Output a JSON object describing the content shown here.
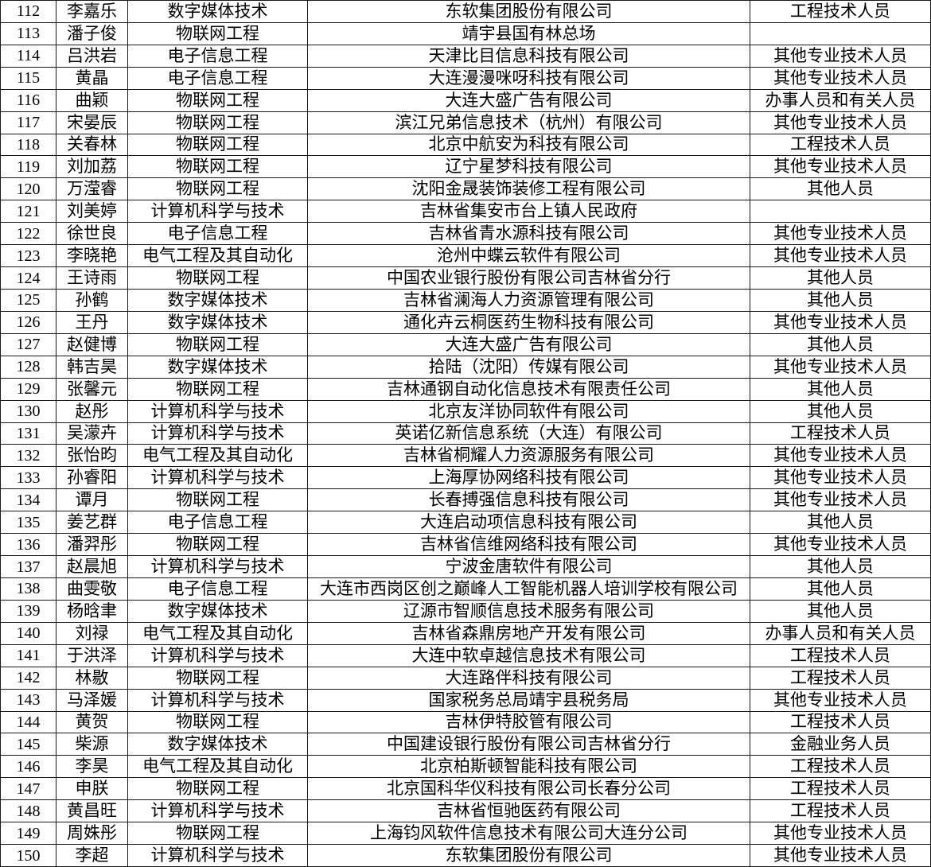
{
  "colors": {
    "background": "#ffffff",
    "border": "#1a1a1a",
    "text": "#000000"
  },
  "table": {
    "columns": [
      "index",
      "name",
      "major",
      "employer",
      "job_category"
    ],
    "rows": [
      [
        "112",
        "李嘉乐",
        "数字媒体技术",
        "东软集团股份有限公司",
        "工程技术人员"
      ],
      [
        "113",
        "潘子俊",
        "物联网工程",
        "靖宇县国有林总场",
        ""
      ],
      [
        "114",
        "吕洪岩",
        "电子信息工程",
        "天津比目信息科技有限公司",
        "其他专业技术人员"
      ],
      [
        "115",
        "黄晶",
        "电子信息工程",
        "大连漫漫咪呀科技有限公司",
        "其他专业技术人员"
      ],
      [
        "116",
        "曲颖",
        "物联网工程",
        "大连大盛广告有限公司",
        "办事人员和有关人员"
      ],
      [
        "117",
        "宋晏辰",
        "物联网工程",
        "滨江兄弟信息技术（杭州）有限公司",
        "其他专业技术人员"
      ],
      [
        "118",
        "关春林",
        "物联网工程",
        "北京中航安为科技有限公司",
        "工程技术人员"
      ],
      [
        "119",
        "刘加荔",
        "物联网工程",
        "辽宁星梦科技有限公司",
        "其他专业技术人员"
      ],
      [
        "120",
        "万滢睿",
        "物联网工程",
        "沈阳金晟装饰装修工程有限公司",
        "其他人员"
      ],
      [
        "121",
        "刘美婷",
        "计算机科学与技术",
        "吉林省集安市台上镇人民政府",
        ""
      ],
      [
        "122",
        "徐世良",
        "电子信息工程",
        "吉林省青水源科技有限公司",
        "其他专业技术人员"
      ],
      [
        "123",
        "李晓艳",
        "电气工程及其自动化",
        "沧州中蝶云软件有限公司",
        "其他专业技术人员"
      ],
      [
        "124",
        "王诗雨",
        "物联网工程",
        "中国农业银行股份有限公司吉林省分行",
        "其他人员"
      ],
      [
        "125",
        "孙鹤",
        "数字媒体技术",
        "吉林省澜海人力资源管理有限公司",
        "其他人员"
      ],
      [
        "126",
        "王丹",
        "数字媒体技术",
        "通化卉云桐医药生物科技有限公司",
        "其他专业技术人员"
      ],
      [
        "127",
        "赵健博",
        "物联网工程",
        "大连大盛广告有限公司",
        "其他人员"
      ],
      [
        "128",
        "韩吉昊",
        "数字媒体技术",
        "拾陆（沈阳）传媒有限公司",
        "其他专业技术人员"
      ],
      [
        "129",
        "张馨元",
        "物联网工程",
        "吉林通钢自动化信息技术有限责任公司",
        "其他人员"
      ],
      [
        "130",
        "赵彤",
        "计算机科学与技术",
        "北京友洋协同软件有限公司",
        "其他人员"
      ],
      [
        "131",
        "吴濛卉",
        "计算机科学与技术",
        "英诺亿新信息系统（大连）有限公司",
        "工程技术人员"
      ],
      [
        "132",
        "张怡昀",
        "电气工程及其自动化",
        "吉林省桐耀人力资源服务有限公司",
        "其他专业技术人员"
      ],
      [
        "133",
        "孙睿阳",
        "计算机科学与技术",
        "上海厚协网络科技有限公司",
        "其他专业技术人员"
      ],
      [
        "134",
        "谭月",
        "物联网工程",
        "长春搏强信息科技有限公司",
        "其他专业技术人员"
      ],
      [
        "135",
        "姜艺群",
        "电子信息工程",
        "大连启动项信息科技有限公司",
        "其他人员"
      ],
      [
        "136",
        "潘羿彤",
        "物联网工程",
        "吉林省信维网络科技有限公司",
        "其他专业技术人员"
      ],
      [
        "137",
        "赵晨旭",
        "计算机科学与技术",
        "宁波金唐软件有限公司",
        "其他人员"
      ],
      [
        "138",
        "曲雯敬",
        "电子信息工程",
        "大连市西岗区创之巅峰人工智能机器人培训学校有限公司",
        "其他人员"
      ],
      [
        "139",
        "杨晗聿",
        "数字媒体技术",
        "辽源市智顺信息技术服务有限公司",
        "其他人员"
      ],
      [
        "140",
        "刘禄",
        "电气工程及其自动化",
        "吉林省森鼎房地产开发有限公司",
        "办事人员和有关人员"
      ],
      [
        "141",
        "于洪泽",
        "计算机科学与技术",
        "大连中软卓越信息技术有限公司",
        "工程技术人员"
      ],
      [
        "142",
        "林敭",
        "物联网工程",
        "大连路伴科技有限公司",
        "工程技术人员"
      ],
      [
        "143",
        "马泽媛",
        "计算机科学与技术",
        "国家税务总局靖宇县税务局",
        "其他专业技术人员"
      ],
      [
        "144",
        "黄贺",
        "物联网工程",
        "吉林伊特胶管有限公司",
        "工程技术人员"
      ],
      [
        "145",
        "柴源",
        "数字媒体技术",
        "中国建设银行股份有限公司吉林省分行",
        "金融业务人员"
      ],
      [
        "146",
        "李昊",
        "电气工程及其自动化",
        "北京柏斯顿智能科技有限公司",
        "工程技术人员"
      ],
      [
        "147",
        "申朕",
        "物联网工程",
        "北京国科华仪科技有限公司长春分公司",
        "工程技术人员"
      ],
      [
        "148",
        "黄昌旺",
        "计算机科学与技术",
        "吉林省恒驰医药有限公司",
        "工程技术人员"
      ],
      [
        "149",
        "周姝彤",
        "物联网工程",
        "上海钧风软件信息技术有限公司大连分公司",
        "其他专业技术人员"
      ],
      [
        "150",
        "李超",
        "计算机科学与技术",
        "东软集团股份有限公司",
        "其他专业技术人员"
      ]
    ]
  }
}
